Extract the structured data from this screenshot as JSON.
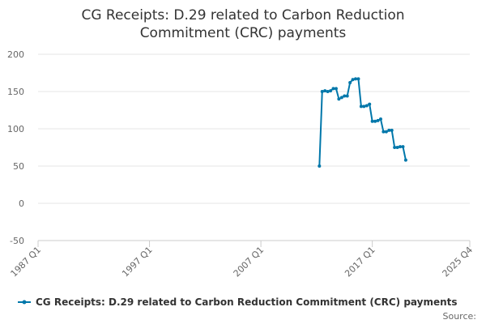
{
  "chart_data": {
    "type": "line",
    "title": [
      "CG Receipts: D.29 related to Carbon Reduction",
      "Commitment (CRC) payments"
    ],
    "x": [
      "2012 Q2",
      "2012 Q3",
      "2012 Q4",
      "2013 Q1",
      "2013 Q2",
      "2013 Q3",
      "2013 Q4",
      "2014 Q1",
      "2014 Q2",
      "2014 Q3",
      "2014 Q4",
      "2015 Q1",
      "2015 Q2",
      "2015 Q3",
      "2015 Q4",
      "2016 Q1",
      "2016 Q2",
      "2016 Q3",
      "2016 Q4",
      "2017 Q1",
      "2017 Q2",
      "2017 Q3",
      "2017 Q4",
      "2018 Q1",
      "2018 Q2",
      "2018 Q3",
      "2018 Q4",
      "2019 Q1",
      "2019 Q2",
      "2019 Q3",
      "2019 Q4",
      "2020 Q1"
    ],
    "series": [
      {
        "name": "CG Receipts: D.29 related to Carbon Reduction Commitment (CRC) payments",
        "color": "#0077aa",
        "values": [
          50,
          150,
          151,
          150,
          151,
          154,
          154,
          140,
          142,
          144,
          144,
          162,
          166,
          167,
          167,
          130,
          130,
          131,
          133,
          110,
          110,
          111,
          113,
          96,
          96,
          98,
          98,
          75,
          75,
          76,
          76,
          58
        ]
      }
    ],
    "xlim": [
      "1987 Q1",
      "2025 Q4"
    ],
    "xticks": [
      "1987 Q1",
      "1997 Q1",
      "2007 Q1",
      "2017 Q1",
      "2025 Q4"
    ],
    "ylim": [
      -50,
      200
    ],
    "yticks": [
      -50,
      0,
      50,
      100,
      150,
      200
    ],
    "grid": true,
    "source": "Source:"
  }
}
